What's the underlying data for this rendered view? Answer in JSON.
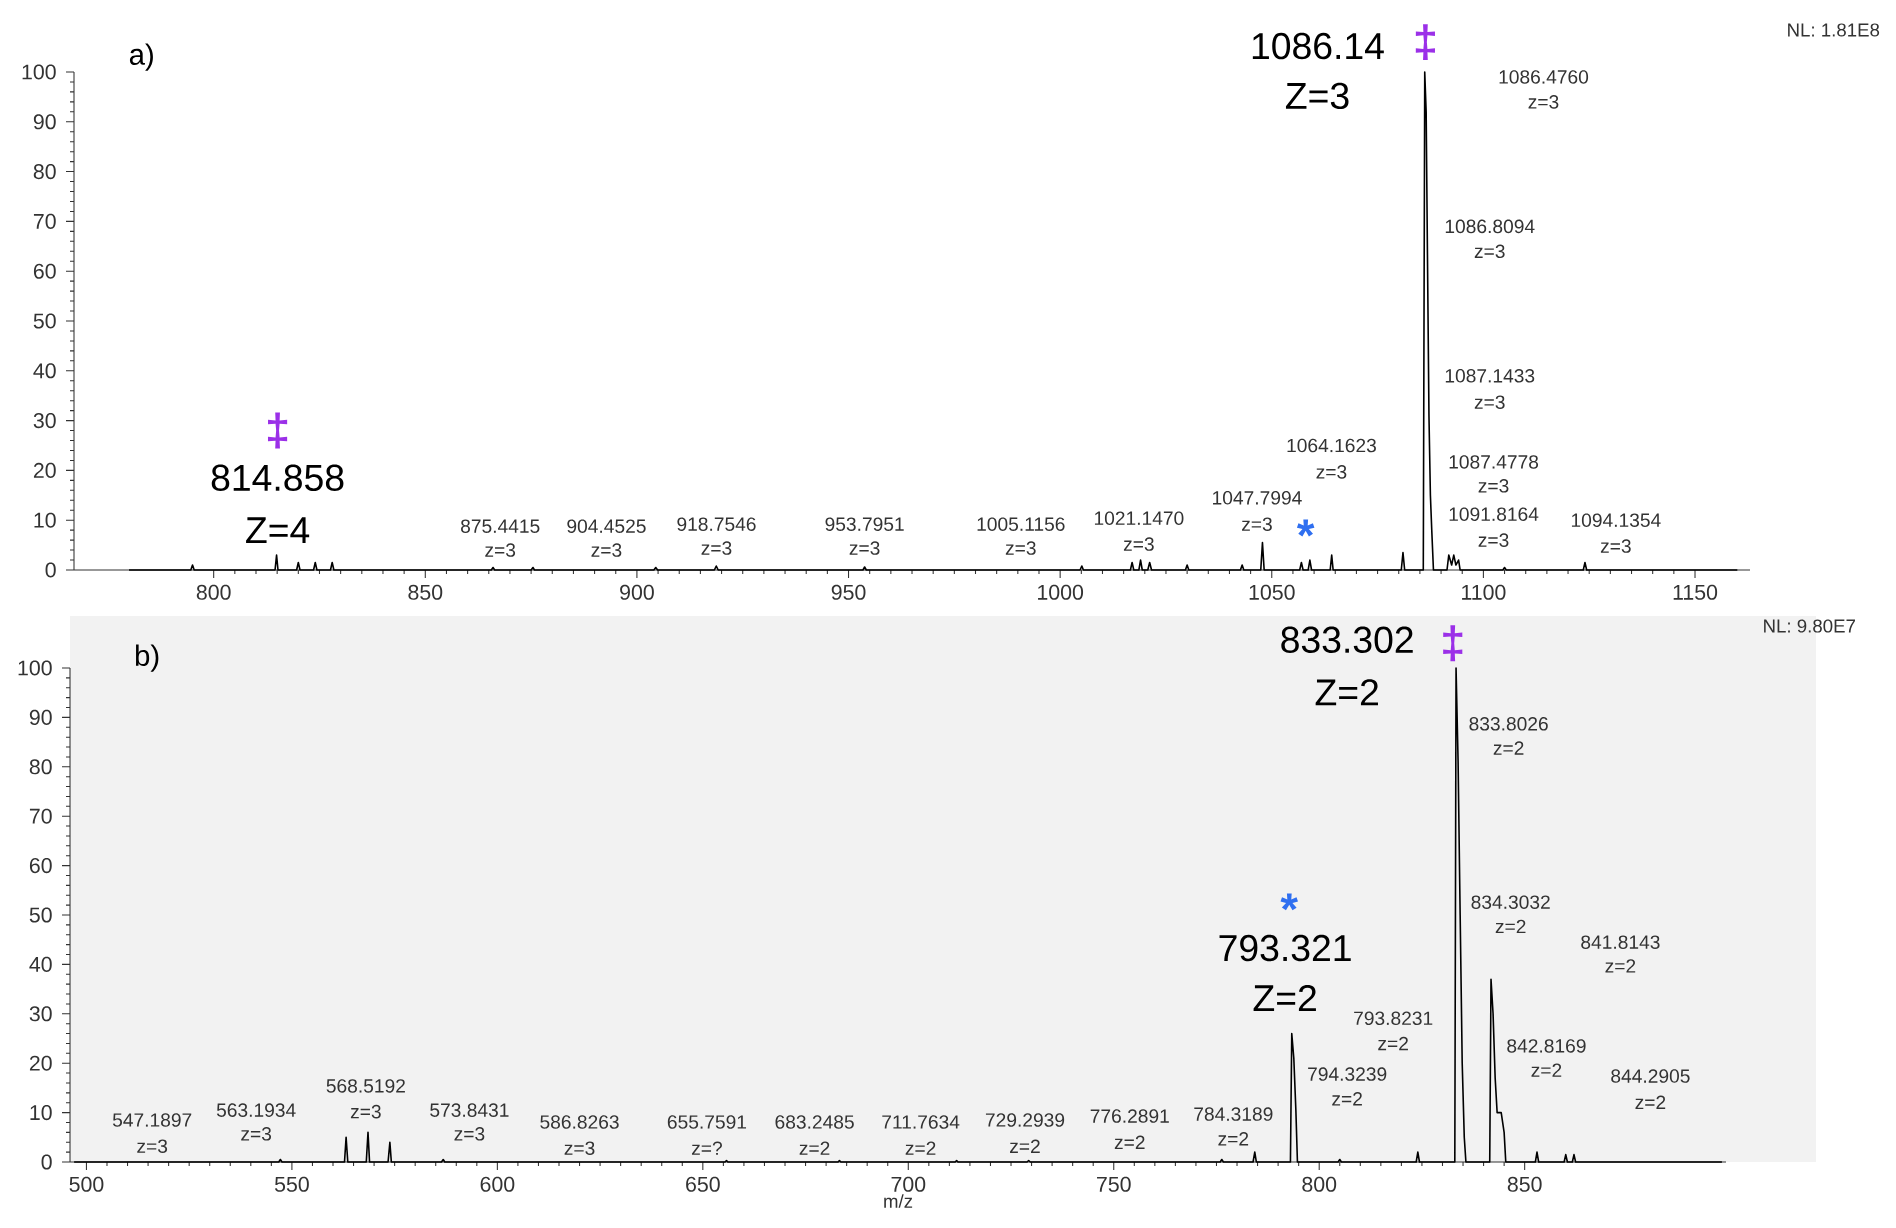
{
  "chart_data": [
    {
      "type": "line",
      "title": "a)",
      "color": "#000000",
      "x": [
        780,
        794.6,
        795,
        795.4,
        814.5,
        814.86,
        815.2,
        819.6,
        820,
        820.4,
        823.6,
        824,
        824.4,
        827.6,
        828,
        828.4,
        865.6,
        866,
        866.4,
        875.0,
        875.44,
        875.8,
        904.0,
        904.45,
        904.9,
        918.3,
        918.75,
        919.2,
        953.4,
        953.8,
        954.2,
        1004.7,
        1005.12,
        1005.5,
        1016.6,
        1017,
        1017.4,
        1018.6,
        1019,
        1019.4,
        1020.7,
        1021.15,
        1021.6,
        1029.6,
        1030,
        1030.4,
        1042.6,
        1043,
        1043.4,
        1047.4,
        1047.8,
        1048.2,
        1056.6,
        1057,
        1057.4,
        1058.6,
        1059,
        1059.4,
        1063.8,
        1064.16,
        1064.5,
        1080.6,
        1081,
        1081.4,
        1085.8,
        1086.14,
        1086.48,
        1086.81,
        1087.14,
        1087.48,
        1087.8,
        1088.2,
        1091.4,
        1091.82,
        1092.5,
        1093,
        1093.5,
        1094.14,
        1094.5,
        1104.6,
        1105,
        1105.4,
        1123.6,
        1124,
        1124.4,
        1160
      ],
      "values": [
        0,
        0,
        1,
        0,
        0,
        3,
        0,
        0,
        1.5,
        0,
        0,
        1.5,
        0,
        0,
        1.5,
        0,
        0,
        0.5,
        0,
        0,
        0.5,
        0,
        0,
        0.5,
        0,
        0,
        0.8,
        0,
        0,
        0.6,
        0,
        0,
        0.8,
        0,
        0,
        1.5,
        0,
        0,
        2,
        0,
        0,
        1.5,
        0,
        0,
        1,
        0,
        0,
        1,
        0,
        0,
        5.5,
        0,
        0,
        1.5,
        0,
        0,
        2,
        0,
        0,
        3,
        0,
        0,
        3.5,
        0,
        0,
        100,
        92,
        61,
        31,
        15,
        8,
        0,
        0,
        3,
        1,
        3,
        1,
        2,
        0,
        0,
        0.5,
        0,
        0,
        1.5,
        0,
        0
      ],
      "xlim": [
        767,
        1163
      ],
      "xticks": [
        800,
        850,
        900,
        950,
        1000,
        1050,
        1100,
        1150
      ],
      "ylim": [
        0,
        100
      ],
      "yticks": [
        0,
        10,
        20,
        30,
        40,
        50,
        60,
        70,
        80,
        90,
        100
      ],
      "annotations": [
        "875.4415",
        "z=3",
        "904.4525",
        "z=3",
        "918.7546",
        "z=3",
        "953.7951",
        "z=3",
        "1005.1156",
        "z=3",
        "1021.1470",
        "z=3",
        "1047.7994",
        "z=3",
        "1064.1623",
        "z=3",
        "1086.4760",
        "z=3",
        "1086.8094",
        "z=3",
        "1087.1433",
        "z=3",
        "1087.4778",
        "z=3",
        "1091.8164",
        "z=3",
        "1094.1354",
        "z=3",
        "814.858",
        "Z=4",
        "1086.14",
        "Z=3",
        "‡",
        "‡",
        "*",
        "NL: 1.81E8"
      ]
    },
    {
      "type": "line",
      "title": "b)",
      "xlabel": "m/z",
      "color": "#000000",
      "x": [
        497,
        546.8,
        547.19,
        547.6,
        562.8,
        563.19,
        563.6,
        568.1,
        568.52,
        568.9,
        573.4,
        573.84,
        574.2,
        586.4,
        586.83,
        587.2,
        655.4,
        655.76,
        656.1,
        682.9,
        683.25,
        683.6,
        711.4,
        711.76,
        712.1,
        728.9,
        729.29,
        729.7,
        775.9,
        776.29,
        776.7,
        783.9,
        784.32,
        784.7,
        793.0,
        793.32,
        793.82,
        794.32,
        794.7,
        804.6,
        805,
        805.4,
        823.6,
        824,
        824.4,
        833.0,
        833.3,
        833.8,
        834.3,
        834.8,
        835.3,
        835.7,
        841.5,
        841.81,
        842.31,
        842.82,
        843.3,
        844.29,
        845,
        845.4,
        852.6,
        853,
        853.4,
        859.6,
        860,
        860.4,
        861.6,
        862,
        862.4,
        898
      ],
      "values": [
        0,
        0,
        0.5,
        0,
        0,
        5,
        0,
        0,
        6,
        0,
        0,
        4,
        0,
        0,
        0.5,
        0,
        0,
        0.3,
        0,
        0,
        0.3,
        0,
        0,
        0.3,
        0,
        0,
        0.3,
        0,
        0,
        0.5,
        0,
        0,
        2,
        0,
        0,
        26,
        21,
        10.5,
        0,
        0,
        0.5,
        0,
        0,
        2,
        0,
        0,
        100,
        81,
        50,
        20,
        5,
        0,
        0,
        37,
        30,
        17,
        10,
        10,
        6,
        0,
        0,
        2,
        0,
        0,
        1.5,
        0,
        0,
        1.5,
        0,
        0
      ],
      "xlim": [
        496,
        899
      ],
      "xticks": [
        500,
        550,
        600,
        650,
        700,
        750,
        800,
        850
      ],
      "ylim": [
        0,
        100
      ],
      "yticks": [
        0,
        10,
        20,
        30,
        40,
        50,
        60,
        70,
        80,
        90,
        100
      ],
      "annotations": [
        "547.1897",
        "z=3",
        "563.1934",
        "z=3",
        "568.5192",
        "z=3",
        "573.8431",
        "z=3",
        "586.8263",
        "z=3",
        "655.7591",
        "z=?",
        "683.2485",
        "z=2",
        "711.7634",
        "z=2",
        "729.2939",
        "z=2",
        "776.2891",
        "z=2",
        "784.3189",
        "z=2",
        "793.8231",
        "z=2",
        "794.3239",
        "z=2",
        "833.8026",
        "z=2",
        "834.3032",
        "z=2",
        "841.8143",
        "z=2",
        "842.8169",
        "z=2",
        "844.2905",
        "z=2",
        "833.302",
        "Z=2",
        "793.321",
        "Z=2",
        "‡",
        "*",
        "NL: 9.80E7"
      ]
    }
  ]
}
